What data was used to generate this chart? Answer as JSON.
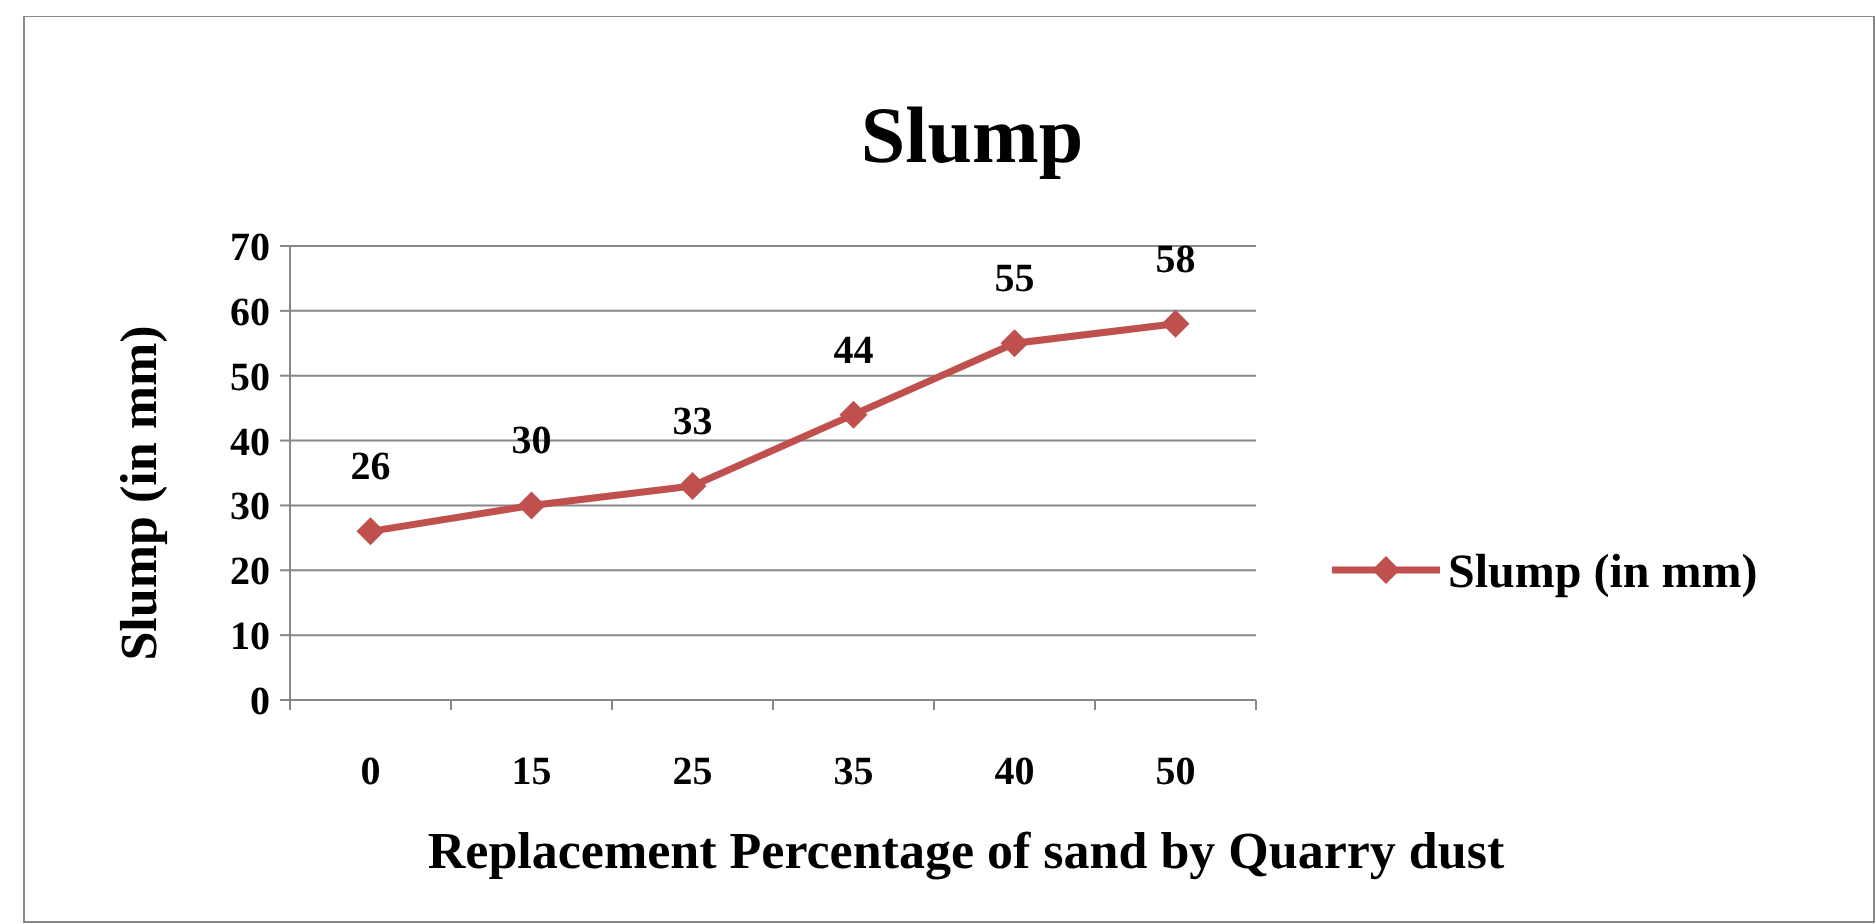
{
  "chart_data": {
    "type": "line",
    "title": "Slump",
    "xlabel": "Replacement Percentage of sand by Quarry dust",
    "ylabel": "Slump (in mm)",
    "categories": [
      "0",
      "15",
      "25",
      "35",
      "40",
      "50"
    ],
    "series": [
      {
        "name": "Slump (in mm)",
        "color": "#c0504d",
        "values": [
          26,
          30,
          33,
          44,
          55,
          58
        ]
      }
    ],
    "ylim": [
      0,
      70
    ],
    "yticks": [
      0,
      10,
      20,
      30,
      40,
      50,
      60,
      70
    ],
    "grid": "y",
    "legend": "right",
    "marker": "diamond",
    "data_labels": true
  }
}
